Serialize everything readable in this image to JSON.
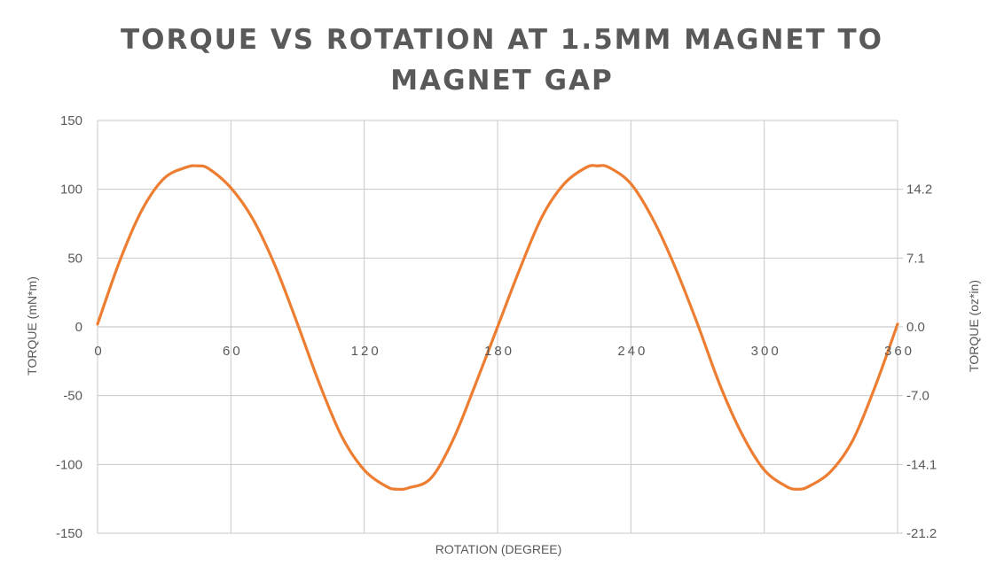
{
  "chart_data": {
    "type": "line",
    "title_lines": [
      "TORQUE VS ROTATION AT 1.5MM MAGNET TO",
      "MAGNET GAP"
    ],
    "xlabel": "ROTATION (DEGREE)",
    "ylabel": "TORQUE (mN*m)",
    "y2label": "TORQUE (oz*in)",
    "xlim": [
      0,
      360
    ],
    "ylim": [
      -150,
      150
    ],
    "x_ticks": [
      "0",
      "60",
      "120",
      "180",
      "240",
      "300",
      "360"
    ],
    "y_ticks": [
      "150",
      "100",
      "50",
      "0",
      "-50",
      "-100",
      "-150"
    ],
    "y2_ticks": [
      "14.2",
      "7.1",
      "0.0",
      "-7.0",
      "-14.1",
      "-21.2"
    ],
    "grid": true,
    "line_color": "#ED7D31",
    "grid_color": "#C8C8C8",
    "series": [
      {
        "x": [
          0,
          10,
          20,
          30,
          40,
          45,
          50,
          60,
          70,
          80,
          90,
          100,
          110,
          120,
          130,
          135,
          140,
          150,
          160,
          170,
          180,
          190,
          200,
          210,
          220,
          225,
          230,
          240,
          250,
          260,
          270,
          280,
          290,
          300,
          310,
          315,
          320,
          330,
          340,
          350,
          360
        ],
        "values": [
          2,
          48,
          85,
          108,
          116,
          117,
          115,
          101,
          78,
          44,
          2,
          -42,
          -80,
          -104,
          -116,
          -118,
          -117,
          -110,
          -82,
          -42,
          0,
          42,
          80,
          104,
          116,
          117,
          116,
          104,
          78,
          43,
          2,
          -42,
          -78,
          -104,
          -116,
          -118,
          -116,
          -105,
          -82,
          -43,
          2
        ]
      }
    ]
  }
}
